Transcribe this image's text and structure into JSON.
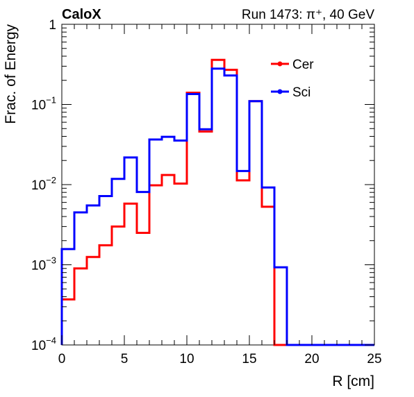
{
  "chart_data": {
    "type": "line",
    "title_left": "CaloX",
    "title_right": "Run 1473:   π⁺, 40 GeV",
    "xlabel": "R [cm]",
    "ylabel": "Frac. of Energy",
    "xlim": [
      0,
      25
    ],
    "ylim": [
      0.0001,
      1
    ],
    "yscale": "log",
    "x_ticks": [
      "0",
      "5",
      "10",
      "15",
      "20",
      "25"
    ],
    "y_ticks": [
      {
        "base": "10",
        "exp": "−4",
        "value": 0.0001
      },
      {
        "base": "10",
        "exp": "−3",
        "value": 0.001
      },
      {
        "base": "10",
        "exp": "−2",
        "value": 0.01
      },
      {
        "base": "10",
        "exp": "−1",
        "value": 0.1
      },
      {
        "base": "1",
        "exp": "",
        "value": 1
      }
    ],
    "legend_position": "top-right",
    "bin_edges": [
      0,
      1,
      2,
      3,
      4,
      5,
      6,
      7,
      8,
      9,
      10,
      11,
      12,
      13,
      14,
      15,
      16,
      17,
      18,
      19,
      20,
      21,
      22,
      23,
      24,
      25
    ],
    "series": [
      {
        "name": "Cer",
        "color": "#ff0000",
        "values": [
          0.00037,
          0.0009,
          0.00125,
          0.00175,
          0.003,
          0.0058,
          0.0025,
          0.0098,
          0.0132,
          0.0103,
          0.14,
          0.046,
          0.36,
          0.27,
          0.0113,
          0.11,
          0.0053,
          0,
          0,
          0,
          0,
          0,
          0,
          0,
          0
        ]
      },
      {
        "name": "Sci",
        "color": "#0000ff",
        "values": [
          0.00157,
          0.0045,
          0.0055,
          0.0072,
          0.0118,
          0.0218,
          0.0081,
          0.0365,
          0.0395,
          0.0355,
          0.135,
          0.049,
          0.28,
          0.23,
          0.0148,
          0.11,
          0.0092,
          0.00093,
          0,
          0,
          0,
          0,
          0,
          0,
          0
        ]
      }
    ]
  }
}
